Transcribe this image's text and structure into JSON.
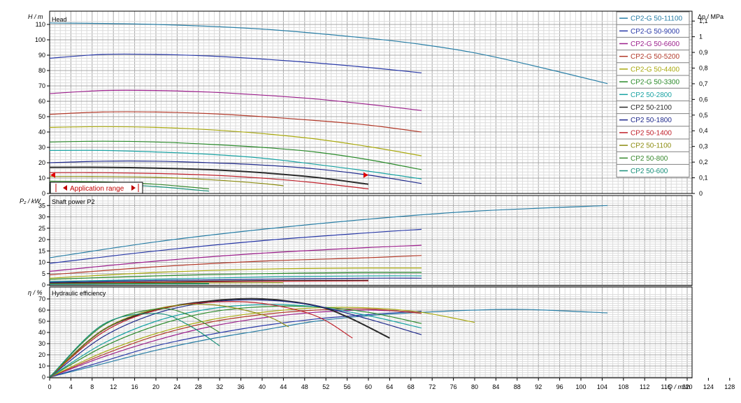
{
  "chart_data": {
    "type": "line",
    "xlabel": "Q / m³/h",
    "xlim": [
      0,
      130
    ],
    "x_ticks": [
      0,
      4,
      8,
      12,
      16,
      20,
      24,
      28,
      32,
      36,
      40,
      44,
      48,
      52,
      56,
      60,
      64,
      68,
      72,
      76,
      80,
      84,
      88,
      92,
      96,
      100,
      104,
      108,
      112,
      116,
      120,
      124,
      128
    ],
    "legend": "right",
    "series_names": [
      "CP2-G 50-11100",
      "CP2-G 50-9000",
      "CP2-G 50-6600",
      "CP2-G 50-5200",
      "CP2-G 50-4400",
      "CP2-G 50-3300",
      "CP2 50-2800",
      "CP2 50-2100",
      "CP2 50-1800",
      "CP2 50-1400",
      "CP2 50-1100",
      "CP2 50-800",
      "CP2 50-600"
    ],
    "colors": [
      "#2a7fa6",
      "#2a3aa8",
      "#9c1f8c",
      "#b23a2a",
      "#aaaa10",
      "#2a8a2a",
      "#1aa3a3",
      "#2a2a2a",
      "#202a8c",
      "#c0202a",
      "#8c8c10",
      "#3a8a30",
      "#18907a"
    ],
    "panels": [
      {
        "title": "Head",
        "ylabel": "H / m",
        "ylim": [
          0,
          112
        ],
        "y_ticks": [
          0,
          10,
          20,
          30,
          40,
          50,
          60,
          70,
          80,
          90,
          100,
          110
        ],
        "secondary_axis": {
          "label": "Δp / MPa",
          "ticks": [
            "0",
            "0,1",
            "0,2",
            "0,3",
            "0,4",
            "0,5",
            "0,6",
            "0,7",
            "0,8",
            "0,9",
            "1",
            "1,1"
          ]
        },
        "annotation": "Application range",
        "application_range": {
          "x": [
            0,
            60
          ],
          "y": 12
        },
        "series": [
          {
            "name": "CP2-G 50-11100",
            "x": [
              0,
              20,
              40,
              60,
              70,
              80,
              90,
              105
            ],
            "y": [
              111,
              110,
              107,
              101,
              97,
              91.5,
              84,
              71.5
            ]
          },
          {
            "name": "CP2-G 50-9000",
            "x": [
              0,
              10,
              20,
              30,
              40,
              50,
              60,
              70
            ],
            "y": [
              88,
              90.5,
              90.5,
              89.5,
              87.5,
              85,
              82,
              78.5
            ]
          },
          {
            "name": "CP2-G 50-6600",
            "x": [
              0,
              10,
              20,
              30,
              40,
              50,
              60,
              70
            ],
            "y": [
              65,
              67,
              67,
              66,
              64,
              61.5,
              58,
              54
            ]
          },
          {
            "name": "CP2-G 50-5200",
            "x": [
              0,
              10,
              20,
              30,
              40,
              50,
              60,
              70
            ],
            "y": [
              51.5,
              53,
              53,
              52,
              50,
              47.5,
              44.5,
              40
            ]
          },
          {
            "name": "CP2-G 50-4400",
            "x": [
              0,
              10,
              20,
              30,
              40,
              50,
              60,
              70
            ],
            "y": [
              43,
              43.5,
              43,
              41.5,
              39,
              35.5,
              30.5,
              24.5
            ]
          },
          {
            "name": "CP2-G 50-3300",
            "x": [
              0,
              10,
              20,
              30,
              40,
              50,
              60,
              70
            ],
            "y": [
              33.5,
              34,
              33.5,
              32,
              30,
              27,
              22,
              15.5
            ]
          },
          {
            "name": "CP2 50-2800",
            "x": [
              0,
              10,
              20,
              30,
              40,
              50,
              60,
              70
            ],
            "y": [
              28,
              28,
              27,
              25.5,
              23,
              19,
              14.5,
              9.5
            ]
          },
          {
            "name": "CP2 50-2100",
            "x": [
              0,
              10,
              20,
              30,
              40,
              50,
              60
            ],
            "y": [
              17,
              17,
              16.5,
              15.5,
              13.5,
              10.5,
              6
            ]
          },
          {
            "name": "CP2 50-1800",
            "x": [
              0,
              10,
              20,
              30,
              40,
              50,
              60,
              70
            ],
            "y": [
              20,
              21,
              21,
              20,
              18.5,
              16,
              12,
              6.5
            ]
          },
          {
            "name": "CP2 50-1400",
            "x": [
              0,
              10,
              20,
              30,
              40,
              50,
              60
            ],
            "y": [
              13.5,
              13.5,
              13,
              12,
              10,
              7,
              3
            ]
          },
          {
            "name": "CP2 50-1100",
            "x": [
              0,
              10,
              20,
              30,
              40,
              44
            ],
            "y": [
              11,
              11,
              10.5,
              9,
              6.5,
              5
            ]
          },
          {
            "name": "CP2 50-800",
            "x": [
              0,
              10,
              20,
              30
            ],
            "y": [
              8,
              7.5,
              6,
              3
            ]
          },
          {
            "name": "CP2 50-600",
            "x": [
              0,
              10,
              20,
              30
            ],
            "y": [
              6.5,
              6,
              4.5,
              1.5
            ]
          }
        ]
      },
      {
        "title": "Shaft power P2",
        "ylabel": "P₂ / kW",
        "ylim": [
          0,
          37
        ],
        "y_ticks": [
          0,
          5,
          10,
          15,
          20,
          25,
          30,
          35
        ],
        "series": [
          {
            "name": "CP2-G 50-11100",
            "x": [
              0,
              20,
              40,
              60,
              80,
              105
            ],
            "y": [
              12,
              19,
              24.5,
              29,
              32.5,
              35
            ]
          },
          {
            "name": "CP2-G 50-9000",
            "x": [
              0,
              20,
              40,
              60,
              70
            ],
            "y": [
              9.5,
              15,
              19.5,
              23,
              24.5
            ]
          },
          {
            "name": "CP2-G 50-6600",
            "x": [
              0,
              20,
              40,
              60,
              70
            ],
            "y": [
              6,
              10.5,
              14,
              16.5,
              17.5
            ]
          },
          {
            "name": "CP2-G 50-5200",
            "x": [
              0,
              20,
              40,
              60,
              70
            ],
            "y": [
              4.5,
              8,
              10.5,
              12,
              13
            ]
          },
          {
            "name": "CP2-G 50-4400",
            "x": [
              0,
              20,
              40,
              60,
              70
            ],
            "y": [
              3,
              5.5,
              7,
              7.5,
              7.5
            ]
          },
          {
            "name": "CP2-G 50-3300",
            "x": [
              0,
              20,
              40,
              60,
              70
            ],
            "y": [
              2.5,
              4,
              5,
              5.5,
              5.5
            ]
          },
          {
            "name": "CP2 50-2800",
            "x": [
              0,
              20,
              40,
              60,
              70
            ],
            "y": [
              1.5,
              2.5,
              3.5,
              4,
              4
            ]
          },
          {
            "name": "CP2 50-2100",
            "x": [
              0,
              20,
              40,
              60
            ],
            "y": [
              0.8,
              1.3,
              1.8,
              2
            ]
          },
          {
            "name": "CP2 50-1800",
            "x": [
              0,
              20,
              40,
              60,
              70
            ],
            "y": [
              1.2,
              2,
              2.5,
              3,
              3
            ]
          },
          {
            "name": "CP2 50-1400",
            "x": [
              0,
              20,
              40,
              60
            ],
            "y": [
              0.6,
              1.2,
              1.6,
              1.8
            ]
          },
          {
            "name": "CP2 50-1100",
            "x": [
              0,
              20,
              40,
              44
            ],
            "y": [
              0.5,
              0.8,
              1,
              1
            ]
          },
          {
            "name": "CP2 50-800",
            "x": [
              0,
              15,
              30
            ],
            "y": [
              0.4,
              0.6,
              0.7
            ]
          },
          {
            "name": "CP2 50-600",
            "x": [
              0,
              15,
              30
            ],
            "y": [
              0.3,
              0.4,
              0.5
            ]
          }
        ]
      },
      {
        "title": "Hydraulic efficiency",
        "ylabel": "η / %",
        "ylim": [
          0,
          75
        ],
        "y_ticks": [
          0,
          10,
          20,
          30,
          40,
          50,
          60,
          70
        ],
        "series": [
          {
            "name": "CP2-G 50-11100",
            "x": [
              0,
              10,
              20,
              30,
              40,
              50,
              60,
              70,
              80,
              90,
              105
            ],
            "y": [
              0,
              12,
              24,
              34,
              42,
              50,
              55,
              58,
              60,
              60.5,
              57.5
            ]
          },
          {
            "name": "CP2-G 50-9000",
            "x": [
              0,
              10,
              20,
              30,
              40,
              50,
              60,
              70
            ],
            "y": [
              0,
              14,
              28,
              38,
              46,
              52,
              56,
              59
            ]
          },
          {
            "name": "CP2-G 50-6600",
            "x": [
              0,
              10,
              20,
              30,
              40,
              50,
              60,
              70
            ],
            "y": [
              0,
              18,
              33,
              45,
              53,
              58,
              60,
              58
            ]
          },
          {
            "name": "CP2-G 50-5200",
            "x": [
              0,
              10,
              20,
              30,
              40,
              50,
              60,
              70
            ],
            "y": [
              0,
              20,
              37,
              49,
              56,
              60,
              61,
              57
            ]
          },
          {
            "name": "CP2-G 50-4400",
            "x": [
              0,
              10,
              20,
              30,
              40,
              50,
              60,
              70,
              80
            ],
            "y": [
              0,
              22,
              39,
              51,
              58,
              62,
              62,
              58,
              49
            ]
          },
          {
            "name": "CP2-G 50-3300",
            "x": [
              0,
              10,
              20,
              30,
              40,
              50,
              60,
              70
            ],
            "y": [
              0,
              27,
              46,
              58,
              63,
              63,
              58,
              48
            ]
          },
          {
            "name": "CP2 50-2800",
            "x": [
              0,
              10,
              20,
              30,
              40,
              50,
              60,
              70
            ],
            "y": [
              0,
              30,
              50,
              61,
              65,
              63,
              55,
              44
            ]
          },
          {
            "name": "CP2 50-2100",
            "x": [
              0,
              10,
              20,
              30,
              40,
              50,
              56,
              64
            ],
            "y": [
              0,
              42,
              60,
              68,
              70,
              64,
              54,
              35
            ]
          },
          {
            "name": "CP2 50-1800",
            "x": [
              0,
              10,
              20,
              30,
              40,
              50,
              60,
              70
            ],
            "y": [
              0,
              36,
              57,
              67,
              69,
              64,
              52,
              38
            ]
          },
          {
            "name": "CP2 50-1400",
            "x": [
              0,
              10,
              20,
              30,
              40,
              50,
              57
            ],
            "y": [
              0,
              40,
              60,
              67,
              66,
              55,
              35
            ]
          },
          {
            "name": "CP2 50-1100",
            "x": [
              0,
              10,
              20,
              30,
              40,
              45
            ],
            "y": [
              0,
              42,
              61,
              65,
              56,
              45
            ]
          },
          {
            "name": "CP2 50-800",
            "x": [
              0,
              10,
              20,
              26,
              32
            ],
            "y": [
              0,
              46,
              61,
              56,
              40
            ]
          },
          {
            "name": "CP2 50-600",
            "x": [
              0,
              10,
              20,
              26,
              32
            ],
            "y": [
              0,
              47,
              57,
              47,
              28
            ]
          }
        ]
      }
    ]
  }
}
